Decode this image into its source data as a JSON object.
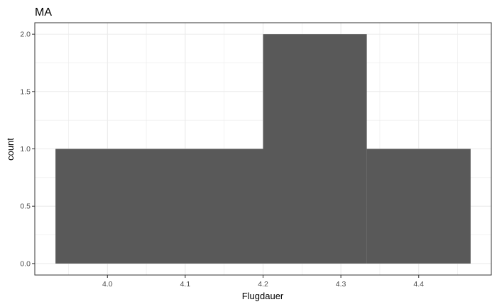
{
  "chart_data": {
    "type": "bar",
    "title": "MA",
    "xlabel": "Flugdauer",
    "ylabel": "count",
    "bins": [
      {
        "x0": 3.9333,
        "x1": 4.2,
        "count": 1
      },
      {
        "x0": 4.2,
        "x1": 4.3333,
        "count": 2
      },
      {
        "x0": 4.3333,
        "x1": 4.4667,
        "count": 1
      }
    ],
    "xlim": [
      3.9067,
      4.4933
    ],
    "ylim": [
      -0.1,
      2.1
    ],
    "xticks": [
      4.0,
      4.1,
      4.2,
      4.3,
      4.4
    ],
    "xtick_labels": [
      "4.0",
      "4.1",
      "4.2",
      "4.3",
      "4.4"
    ],
    "yticks": [
      0.0,
      0.5,
      1.0,
      1.5,
      2.0
    ],
    "ytick_labels": [
      "0.0",
      "0.5",
      "1.0",
      "1.5",
      "2.0"
    ],
    "grid": true,
    "bar_color": "#595959",
    "panel_border_color": "#333333",
    "grid_color": "#ebebeb"
  }
}
